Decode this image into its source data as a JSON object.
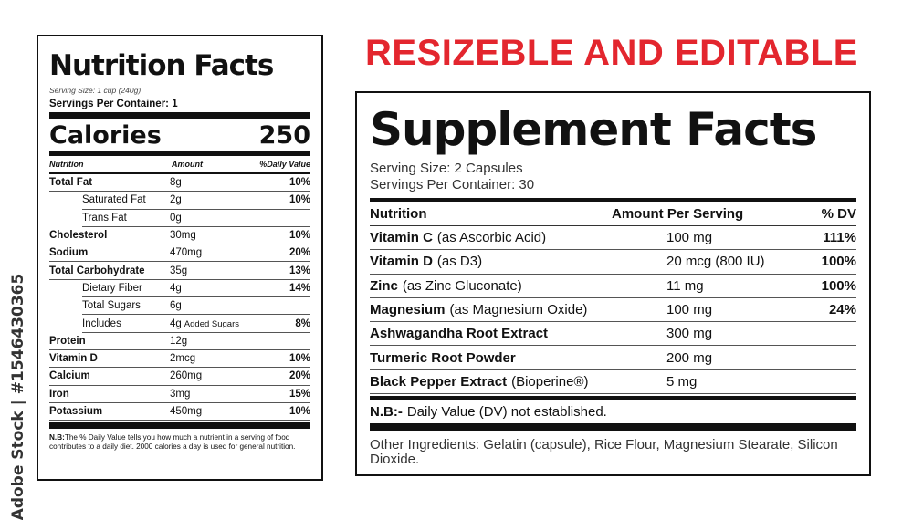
{
  "watermark": "Adobe Stock | #1546430365",
  "headline": "RESIZEBLE AND EDITABLE",
  "nutrition": {
    "title": "Nutrition Facts",
    "serving_size": "Serving Size: 1 cup (240g)",
    "servings_per_container": "Servings Per Container: 1",
    "calories_label": "Calories",
    "calories_value": "250",
    "header": [
      "Nutrition",
      "Amount",
      "%Daily Value"
    ],
    "rows": [
      {
        "name": "Total Fat",
        "amount": "8g",
        "dv": "10%"
      },
      {
        "name": "Saturated Fat",
        "amount": "2g",
        "dv": "10%"
      },
      {
        "name": "Trans Fat",
        "amount": "0g",
        "dv": null
      },
      {
        "name": "Cholesterol",
        "amount": "30mg",
        "dv": "10%"
      },
      {
        "name": "Sodium",
        "amount": "470mg",
        "dv": "20%"
      },
      {
        "name": "Total Carbohydrate",
        "amount": "35g",
        "dv": "13%"
      },
      {
        "name": "Dietary Fiber",
        "amount": "4g",
        "dv": "14%"
      },
      {
        "name": "Total Sugars",
        "amount": "6g",
        "dv": null
      },
      {
        "name": "Includes",
        "amount": "4g",
        "extra": "Added Sugars",
        "dv": "8%"
      },
      {
        "name": "Protein",
        "amount": "12g",
        "dv": null
      },
      {
        "name": "Vitamin D",
        "amount": "2mcg",
        "dv": "10%"
      },
      {
        "name": "Calcium",
        "amount": "260mg",
        "dv": "20%"
      },
      {
        "name": "Iron",
        "amount": "3mg",
        "dv": "15%"
      },
      {
        "name": "Potassium",
        "amount": "450mg",
        "dv": "10%"
      }
    ],
    "note_label": "N.B:",
    "note": "The % Daily Value tells you how much a nutrient in a serving of food contributes to a daily diet. 2000 calories a day is used for general nutrition."
  },
  "supplement": {
    "title": "Supplement Facts",
    "serving_size": "Serving Size: 2 Capsules",
    "servings_per_container": "Servings Per Container: 30",
    "header": [
      "Nutrition",
      "Amount Per Serving",
      "% DV"
    ],
    "rows": [
      {
        "name": "Vitamin C",
        "detail": "(as Ascorbic Acid)",
        "amount": "100 mg",
        "dv": "111%"
      },
      {
        "name": "Vitamin D",
        "detail": "(as D3)",
        "amount": "20 mcg (800 IU)",
        "dv": "100%"
      },
      {
        "name": "Zinc",
        "detail": "(as Zinc Gluconate)",
        "amount": "11 mg",
        "dv": "100%"
      },
      {
        "name": "Magnesium",
        "detail": "(as Magnesium Oxide)",
        "amount": "100 mg",
        "dv": "24%"
      },
      {
        "name": "Ashwagandha Root Extract",
        "amount": "300 mg"
      },
      {
        "name": "Turmeric Root Powder",
        "amount": "200 mg"
      },
      {
        "name": "Black Pepper Extract",
        "detail": "(Bioperine®)",
        "amount": "5 mg"
      }
    ],
    "note_label": "N.B:-",
    "note": "Daily Value (DV) not established.",
    "other_ingredients": "Other Ingredients: Gelatin (capsule), Rice Flour, Magnesium Stearate, Silicon Dioxide."
  }
}
